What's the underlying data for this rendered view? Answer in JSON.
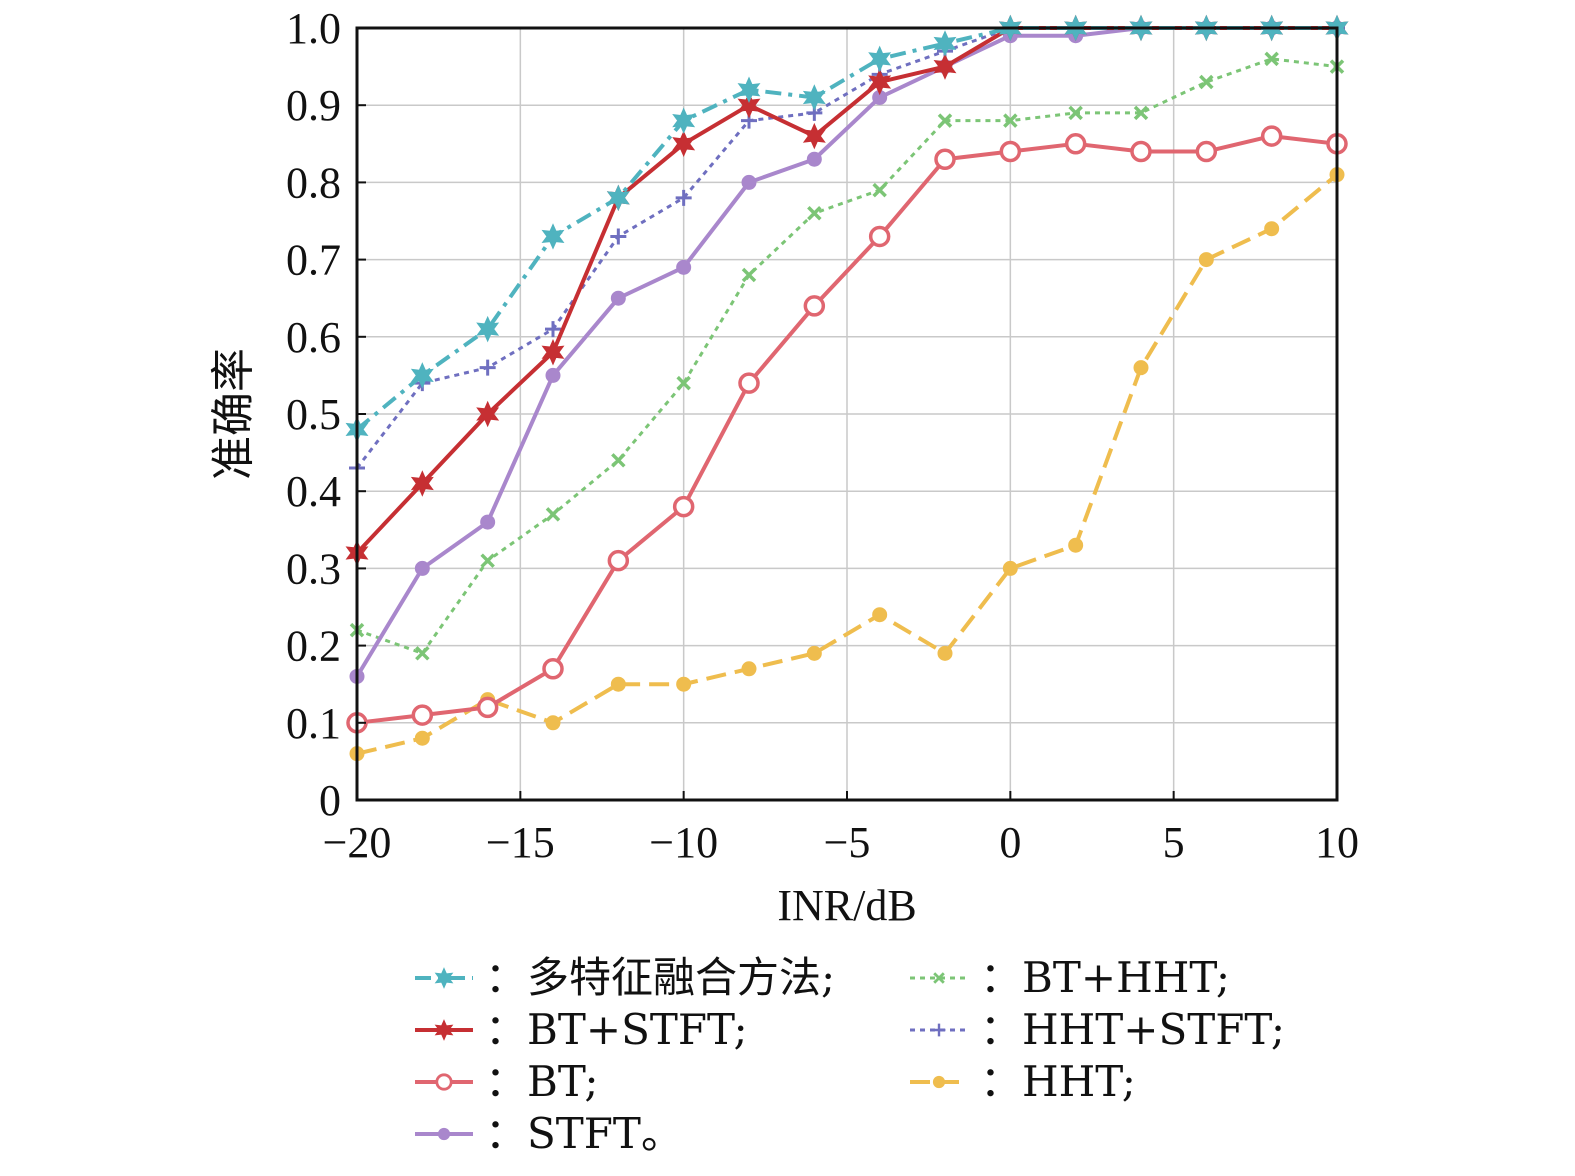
{
  "chart_data": {
    "type": "line",
    "xlabel": "INR/dB",
    "ylabel": "准确率",
    "xlim": [
      -20,
      10
    ],
    "ylim": [
      0,
      1.0
    ],
    "xticks": [
      -20,
      -15,
      -10,
      -5,
      0,
      5,
      10
    ],
    "xtick_labels": [
      "−20",
      "−15",
      "−10",
      "−5",
      "0",
      "5",
      "10"
    ],
    "yticks": [
      0,
      0.1,
      0.2,
      0.3,
      0.4,
      0.5,
      0.6,
      0.7,
      0.8,
      0.9,
      1.0
    ],
    "ytick_labels": [
      "0",
      "0.1",
      "0.2",
      "0.3",
      "0.4",
      "0.5",
      "0.6",
      "0.7",
      "0.8",
      "0.9",
      "1.0"
    ],
    "grid": true,
    "x": [
      -20,
      -18,
      -16,
      -14,
      -12,
      -10,
      -8,
      -6,
      -4,
      -2,
      0,
      2,
      4,
      6,
      8,
      10
    ],
    "series": [
      {
        "name": "：多特征融合方法;",
        "color": "#4fb3bf",
        "dash": "dashdot",
        "marker": "star6",
        "values": [
          0.48,
          0.55,
          0.61,
          0.73,
          0.78,
          0.88,
          0.92,
          0.91,
          0.96,
          0.98,
          1.0,
          1.0,
          1.0,
          1.0,
          1.0,
          1.0
        ]
      },
      {
        "name": "：BT+STFT;",
        "color": "#c62f33",
        "dash": "solid",
        "marker": "star6",
        "values": [
          0.32,
          0.41,
          0.5,
          0.58,
          0.78,
          0.85,
          0.9,
          0.86,
          0.93,
          0.95,
          1.0,
          1.0,
          1.0,
          1.0,
          1.0,
          1.0
        ]
      },
      {
        "name": "：BT;",
        "color": "#e06670",
        "dash": "solid",
        "marker": "circle",
        "values": [
          0.1,
          0.11,
          0.12,
          0.17,
          0.31,
          0.38,
          0.54,
          0.64,
          0.73,
          0.83,
          0.84,
          0.85,
          0.84,
          0.84,
          0.86,
          0.85
        ]
      },
      {
        "name": "：STFT。",
        "color": "#a987cc",
        "dash": "solid",
        "marker": "dot",
        "values": [
          0.16,
          0.3,
          0.36,
          0.55,
          0.65,
          0.69,
          0.8,
          0.83,
          0.91,
          0.95,
          0.99,
          0.99,
          1.0,
          1.0,
          1.0,
          1.0
        ]
      },
      {
        "name": "：BT+HHT;",
        "color": "#7cc576",
        "dash": "dotted",
        "marker": "cross",
        "values": [
          0.22,
          0.19,
          0.31,
          0.37,
          0.44,
          0.54,
          0.68,
          0.76,
          0.79,
          0.88,
          0.88,
          0.89,
          0.89,
          0.93,
          0.96,
          0.95
        ]
      },
      {
        "name": "：HHT+STFT;",
        "color": "#6f6fc0",
        "dash": "dotted",
        "marker": "plus",
        "values": [
          0.43,
          0.54,
          0.56,
          0.61,
          0.73,
          0.78,
          0.88,
          0.89,
          0.94,
          0.97,
          1.0,
          1.0,
          1.0,
          1.0,
          1.0,
          1.0
        ]
      },
      {
        "name": "：HHT;",
        "color": "#efbd4e",
        "dash": "longdash",
        "marker": "dot",
        "values": [
          0.06,
          0.08,
          0.13,
          0.1,
          0.15,
          0.15,
          0.17,
          0.19,
          0.24,
          0.19,
          0.3,
          0.33,
          0.56,
          0.7,
          0.74,
          0.81
        ]
      }
    ]
  }
}
